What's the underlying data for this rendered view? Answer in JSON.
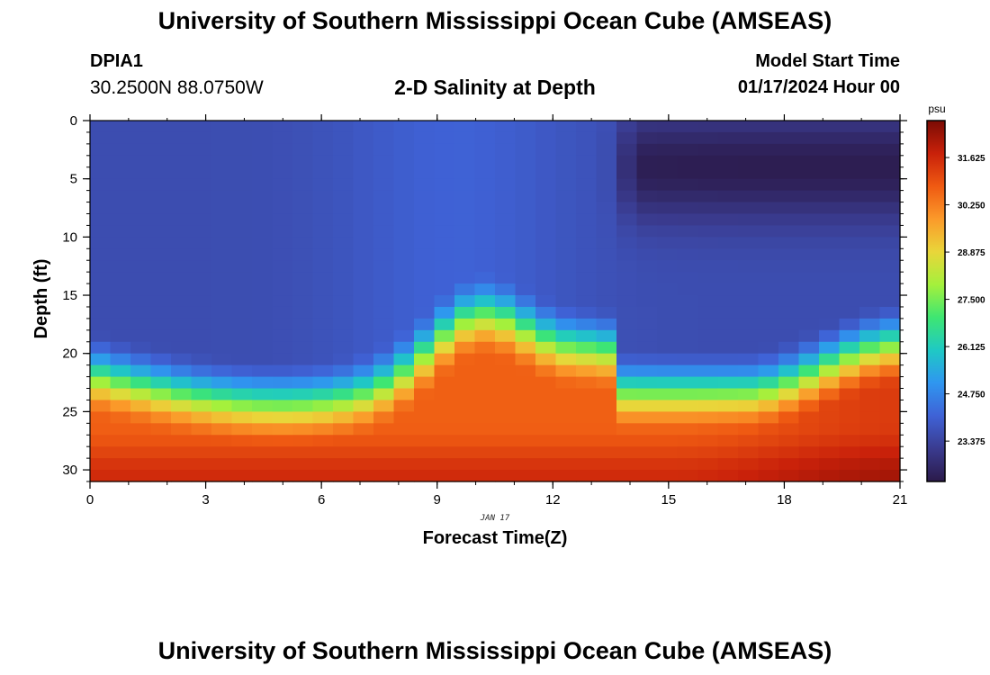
{
  "header": {
    "title": "University of Southern Mississippi Ocean Cube (AMSEAS)",
    "station_id": "DPIA1",
    "station_coords": "30.2500N  88.0750W",
    "plot_title": "2-D Salinity at Depth",
    "start_label": "Model Start Time",
    "start_value": "01/17/2024 Hour 00"
  },
  "footer": {
    "title": "University of Southern Mississippi Ocean Cube (AMSEAS)"
  },
  "chart_data": {
    "type": "heatmap",
    "title": "2-D Salinity at Depth",
    "xlabel": "Forecast Time(Z)",
    "ylabel": "Depth (ft)",
    "date_label": "JAN 17",
    "xlim": [
      0,
      21
    ],
    "ylim": [
      0,
      31
    ],
    "x_ticks": [
      "0",
      "3",
      "6",
      "9",
      "12",
      "15",
      "18",
      "21"
    ],
    "y_ticks": [
      "0",
      "5",
      "10",
      "15",
      "20",
      "25",
      "30"
    ],
    "colorbar": {
      "unit": "psu",
      "min": 22.2,
      "max": 32.7,
      "labels": [
        "31.625",
        "30.250",
        "28.875",
        "27.500",
        "26.125",
        "24.750",
        "23.375"
      ]
    },
    "palette": [
      "#2b1a4a",
      "#3a3b8f",
      "#3f62d6",
      "#2f96f0",
      "#1fc9c4",
      "#3ee672",
      "#a4f03c",
      "#e9d63a",
      "#fb9a2a",
      "#ef5a12",
      "#c9210a",
      "#7a0b04"
    ]
  }
}
